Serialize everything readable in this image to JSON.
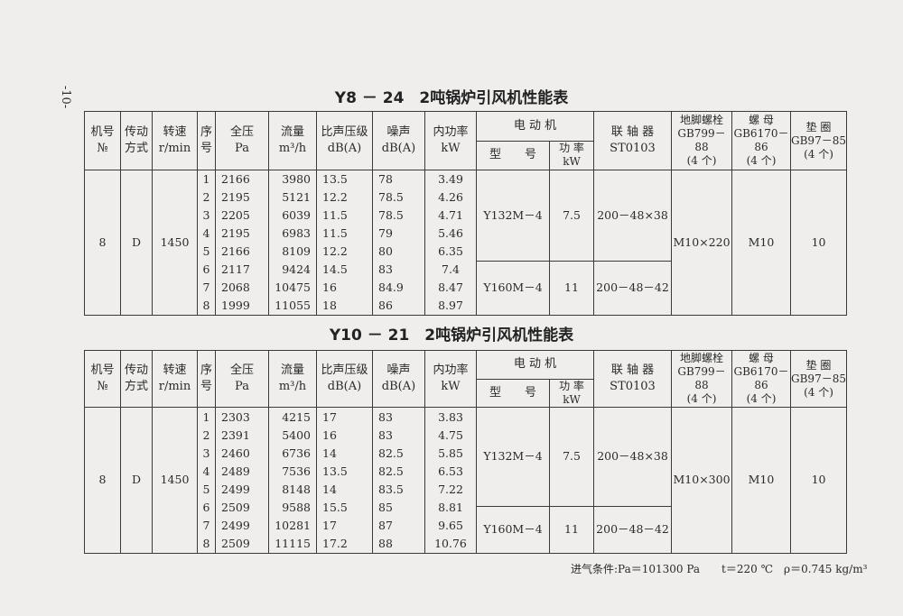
{
  "page_number": "-10-",
  "headers": {
    "no": [
      "机号",
      "№"
    ],
    "drive": [
      "传动",
      "方式"
    ],
    "speed": [
      "转速",
      "r/min"
    ],
    "seq": [
      "序",
      "号"
    ],
    "pressure": [
      "全压",
      "Pa"
    ],
    "flow": [
      "流量",
      "m³/h"
    ],
    "spl": [
      "比声压级",
      "dB(A)"
    ],
    "noise": [
      "噪声",
      "dB(A)"
    ],
    "power": [
      "内功率",
      "kW"
    ],
    "motor": "电 动 机",
    "motor_model": "型　　号",
    "motor_power": [
      "功 率",
      "kW"
    ],
    "coupling": [
      "联 轴 器",
      "ST0103"
    ],
    "bolt": [
      "地脚螺栓",
      "GB799－88",
      "(4 个)"
    ],
    "nut": [
      "螺 母",
      "GB6170－86",
      "(4 个)"
    ],
    "washer": [
      "垫 圈",
      "GB97－85",
      "(4 个)"
    ]
  },
  "tables": [
    {
      "title": "Y8 － 24　2吨锅炉引风机性能表",
      "no": "8",
      "drive": "D",
      "speed": "1450",
      "seq": [
        "1",
        "2",
        "3",
        "4",
        "5",
        "6",
        "7",
        "8"
      ],
      "pressure": [
        "2166",
        "2195",
        "2205",
        "2195",
        "2166",
        "2117",
        "2068",
        "1999"
      ],
      "flow": [
        "3980",
        "5121",
        "6039",
        "6983",
        "8109",
        "9424",
        "10475",
        "11055"
      ],
      "spl": [
        "13.5",
        "12.2",
        "11.5",
        "11.5",
        "12.2",
        "14.5",
        "16",
        "18"
      ],
      "noise": [
        "78",
        "78.5",
        "78.5",
        "79",
        "80",
        "83",
        "84.9",
        "86"
      ],
      "power": [
        "3.49",
        "4.26",
        "4.71",
        "5.46",
        "6.35",
        "7.4",
        "8.47",
        "8.97"
      ],
      "motors": [
        {
          "model": "Y132M－4",
          "power": "7.5",
          "coupling": "200－48×38"
        },
        {
          "model": "Y160M－4",
          "power": "11",
          "coupling": "200－48－42"
        }
      ],
      "bolt": "M10×220",
      "nut": "M10",
      "washer": "10"
    },
    {
      "title": "Y10 － 21　2吨锅炉引风机性能表",
      "no": "8",
      "drive": "D",
      "speed": "1450",
      "seq": [
        "1",
        "2",
        "3",
        "4",
        "5",
        "6",
        "7",
        "8"
      ],
      "pressure": [
        "2303",
        "2391",
        "2460",
        "2489",
        "2499",
        "2509",
        "2499",
        "2509"
      ],
      "flow": [
        "4215",
        "5400",
        "6736",
        "7536",
        "8148",
        "9588",
        "10281",
        "11115"
      ],
      "spl": [
        "17",
        "16",
        "14",
        "13.5",
        "14",
        "15.5",
        "17",
        "17.2"
      ],
      "noise": [
        "83",
        "83",
        "82.5",
        "82.5",
        "83.5",
        "85",
        "87",
        "88"
      ],
      "power": [
        "3.83",
        "4.75",
        "5.85",
        "6.53",
        "7.22",
        "8.81",
        "9.65",
        "10.76"
      ],
      "motors": [
        {
          "model": "Y132M－4",
          "power": "7.5",
          "coupling": "200－48×38"
        },
        {
          "model": "Y160M－4",
          "power": "11",
          "coupling": "200－48－42"
        }
      ],
      "bolt": "M10×300",
      "nut": "M10",
      "washer": "10"
    }
  ],
  "note": "进气条件:Pa＝101300 Pa　　t＝220 ℃　ρ＝0.745 kg/m³"
}
